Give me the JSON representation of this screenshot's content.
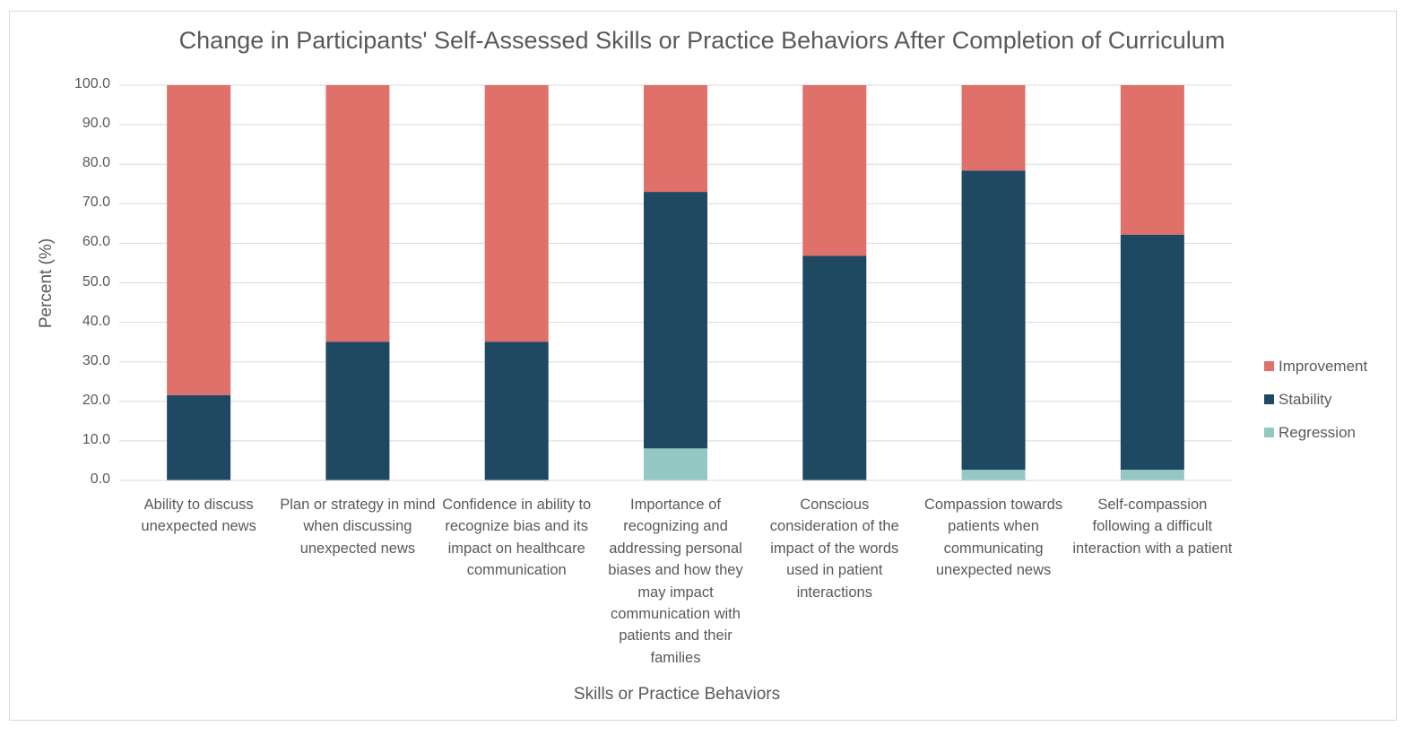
{
  "chart_data": {
    "type": "bar",
    "stacked": true,
    "title": "Change in Participants' Self-Assessed Skills or Practice Behaviors After Completion of Curriculum",
    "xlabel": "Skills or Practice Behaviors",
    "ylabel": "Percent (%)",
    "ylim": [
      0,
      100
    ],
    "yticks": [
      "0.0",
      "10.0",
      "20.0",
      "30.0",
      "40.0",
      "50.0",
      "60.0",
      "70.0",
      "80.0",
      "90.0",
      "100.0"
    ],
    "grid": true,
    "legend_position": "right",
    "categories": [
      "Ability to discuss unexpected news",
      "Plan or strategy in mind when discussing unexpected news",
      "Confidence in ability to recognize bias and its impact on healthcare communication",
      "Importance of recognizing and addressing personal biases and how they may impact communication with patients and their families",
      "Conscious consideration of the impact of the words used in patient interactions",
      "Compassion towards patients when communicating unexpected news",
      "Self-compassion following a difficult interaction with a patient"
    ],
    "series": [
      {
        "name": "Regression",
        "color": "#93c8c4",
        "values": [
          0,
          0,
          0,
          8.1,
          0,
          2.7,
          2.7
        ]
      },
      {
        "name": "Stability",
        "color": "#1f4862",
        "values": [
          21.6,
          35.1,
          35.1,
          64.9,
          56.8,
          75.7,
          59.5
        ]
      },
      {
        "name": "Improvement",
        "color": "#e0706a",
        "values": [
          78.4,
          64.9,
          64.9,
          27.0,
          43.2,
          21.6,
          37.8
        ]
      }
    ],
    "legend_order": [
      "Improvement",
      "Stability",
      "Regression"
    ]
  }
}
